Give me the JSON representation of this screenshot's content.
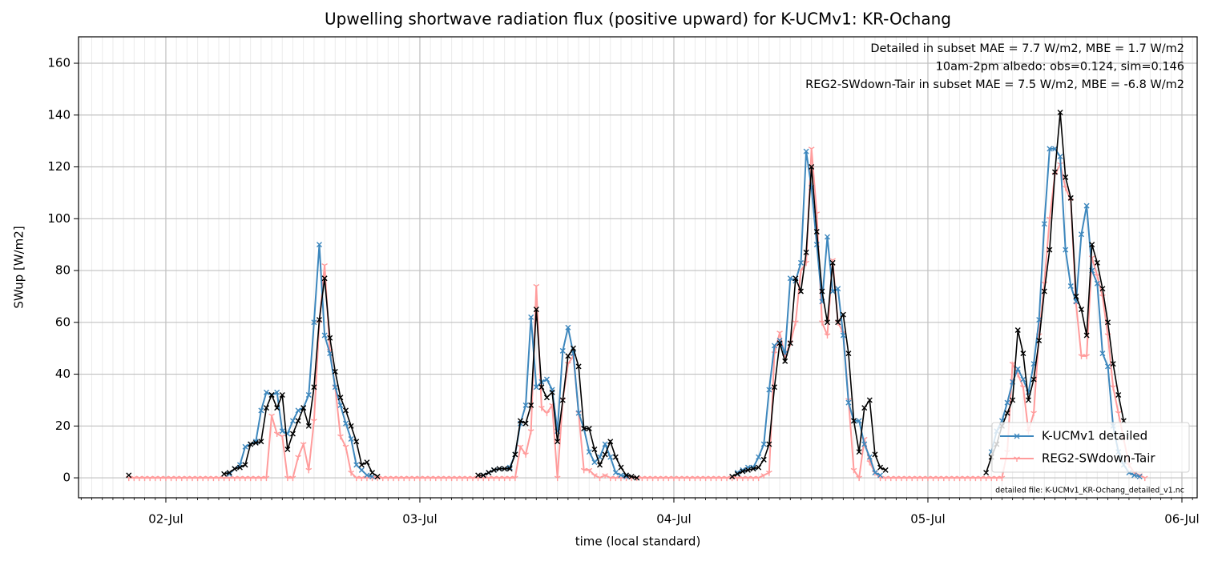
{
  "chart_data": {
    "type": "line",
    "title": "Upwelling shortwave radiation flux (positive upward) for K-UCMv1: KR-Ochang",
    "xlabel": "time (local standard)",
    "ylabel": "SWup [W/m2]",
    "annotations": [
      {
        "text": "Detailed in subset MAE = 7.7 W/m2, MBE = 1.7 W/m2",
        "color": "#1f77b4"
      },
      {
        "text": "10am-2pm albedo: obs=0.124, sim=0.146",
        "color": "#000000"
      },
      {
        "text": "REG2-SWdown-Tair in subset MAE = 7.5 W/m2, MBE = -6.8 W/m2",
        "color": "#ff0000"
      }
    ],
    "footnote": "detailed file: K-UCMv1_KR-Ochang_detailed_v1.nc",
    "xlim": [
      -8.25,
      97.44
    ],
    "xticks": [
      {
        "value": 0,
        "label": "02-Jul"
      },
      {
        "value": 24,
        "label": "03-Jul"
      },
      {
        "value": 48,
        "label": "04-Jul"
      },
      {
        "value": 72,
        "label": "05-Jul"
      },
      {
        "value": 96,
        "label": "06-Jul"
      }
    ],
    "xminor_interval": 1,
    "ylim": [
      -7.7,
      170.2
    ],
    "yticks": [
      0,
      20,
      40,
      60,
      80,
      100,
      120,
      140,
      160
    ],
    "grid": true,
    "legend": "lower right",
    "x": [
      -3.5,
      -3,
      -2.5,
      -2,
      -1.5,
      -1,
      -0.5,
      0,
      0.5,
      1,
      1.5,
      2,
      2.5,
      3,
      3.5,
      4,
      4.5,
      5,
      5.5,
      6,
      6.5,
      7,
      7.5,
      8,
      8.5,
      9,
      9.5,
      10,
      10.5,
      11,
      11.5,
      12,
      12.5,
      13,
      13.5,
      14,
      14.5,
      15,
      15.5,
      16,
      16.5,
      17,
      17.5,
      18,
      18.5,
      19,
      19.5,
      20,
      20.5,
      21,
      21.5,
      22,
      22.5,
      23,
      23.5,
      24,
      24.5,
      25,
      25.5,
      26,
      26.5,
      27,
      27.5,
      28,
      28.5,
      29,
      29.5,
      30,
      30.5,
      31,
      31.5,
      32,
      32.5,
      33,
      33.5,
      34,
      34.5,
      35,
      35.5,
      36,
      36.5,
      37,
      37.5,
      38,
      38.5,
      39,
      39.5,
      40,
      40.5,
      41,
      41.5,
      42,
      42.5,
      43,
      43.5,
      44,
      44.5,
      45,
      45.5,
      46,
      46.5,
      47,
      47.5,
      48,
      48.5,
      49,
      49.5,
      50,
      50.5,
      51,
      51.5,
      52,
      52.5,
      53,
      53.5,
      54,
      54.5,
      55,
      55.5,
      56,
      56.5,
      57,
      57.5,
      58,
      58.5,
      59,
      59.5,
      60,
      60.5,
      61,
      61.5,
      62,
      62.5,
      63,
      63.5,
      64,
      64.5,
      65,
      65.5,
      66,
      66.5,
      67,
      67.5,
      68,
      68.5,
      69,
      69.5,
      70,
      70.5,
      71,
      71.5,
      72,
      72.5,
      73,
      73.5,
      74,
      74.5,
      75,
      75.5,
      76,
      76.5,
      77,
      77.5,
      78,
      78.5,
      79,
      79.5,
      80,
      80.5,
      81,
      81.5,
      82,
      82.5,
      83,
      83.5,
      84,
      84.5,
      85,
      85.5,
      86,
      86.5,
      87,
      87.5,
      88,
      88.5,
      89,
      89.5,
      90,
      90.5,
      91,
      91.5,
      92,
      92.5
    ],
    "series": [
      {
        "name": "K-UCMv1 detailed",
        "color": "#3d87bd",
        "marker": "x",
        "values": [
          null,
          null,
          null,
          null,
          null,
          null,
          null,
          null,
          null,
          null,
          null,
          null,
          null,
          null,
          null,
          null,
          null,
          null,
          null,
          1.5,
          3.5,
          5,
          12,
          13,
          14,
          26,
          33,
          32,
          33,
          18,
          17,
          22,
          26,
          27,
          32,
          60,
          90,
          55,
          48,
          35,
          28,
          21,
          15,
          5,
          3,
          1,
          0.5,
          null,
          null,
          null,
          null,
          null,
          null,
          null,
          null,
          null,
          null,
          null,
          null,
          null,
          null,
          null,
          null,
          null,
          null,
          null,
          null,
          1,
          2,
          3,
          3.5,
          3.5,
          4,
          9,
          21,
          28,
          62,
          35,
          37,
          38,
          34,
          18,
          49,
          58,
          48,
          25,
          19,
          10,
          6,
          8,
          13,
          8,
          2,
          1,
          0.5,
          null,
          null,
          null,
          null,
          null,
          null,
          null,
          null,
          null,
          null,
          null,
          null,
          null,
          null,
          null,
          null,
          null,
          null,
          null,
          null,
          2,
          3,
          4,
          4,
          8,
          13,
          34,
          51,
          53,
          48,
          77,
          76,
          83,
          126,
          112,
          90,
          68,
          93,
          72,
          73,
          55,
          29,
          22,
          22,
          13,
          8,
          2,
          1,
          null,
          null,
          null,
          null,
          null,
          null,
          null,
          null,
          null,
          null,
          null,
          null,
          null,
          null,
          null,
          null,
          null,
          null,
          null,
          null,
          10,
          18,
          22,
          29,
          37,
          42,
          38,
          33,
          44,
          61,
          98,
          127,
          127,
          124,
          88,
          74,
          68,
          94,
          105,
          80,
          75,
          48,
          43,
          20,
          10,
          5,
          2,
          1,
          0.5,
          null
        ]
      },
      {
        "name": "REG2-SWdown-Tair",
        "color": "#ff9c9c",
        "marker": "tri_down",
        "values": [
          0,
          0,
          0,
          0,
          0,
          0,
          0,
          0,
          0,
          0,
          0,
          0,
          0,
          0,
          0,
          0,
          0,
          0,
          0,
          0,
          0,
          0,
          0,
          0,
          0,
          0,
          0,
          24,
          17,
          16,
          0,
          0,
          8,
          13,
          3,
          22,
          60,
          82,
          49,
          35,
          16,
          12,
          2,
          0,
          0,
          0,
          0,
          0,
          0,
          0,
          0,
          0,
          0,
          0,
          0,
          0,
          0,
          0,
          0,
          0,
          0,
          0,
          0,
          0,
          0,
          0,
          0,
          0,
          0,
          0,
          0,
          0,
          0,
          0,
          12,
          9,
          18,
          74,
          27,
          25,
          28,
          0,
          30,
          44,
          47,
          25,
          3,
          3,
          1,
          0,
          1,
          0,
          0,
          0,
          0,
          0,
          0,
          0,
          0,
          0,
          0,
          0,
          0,
          0,
          0,
          0,
          0,
          0,
          0,
          0,
          0,
          0,
          0,
          0,
          0,
          0,
          0,
          0,
          0,
          0,
          1,
          2,
          48,
          56,
          47,
          52,
          60,
          80,
          83,
          127,
          102,
          60,
          55,
          84,
          60,
          56,
          30,
          3,
          0,
          15,
          6,
          2,
          0,
          0,
          0,
          0,
          0,
          0,
          0,
          0,
          0,
          0,
          0,
          0,
          0,
          0,
          0,
          0,
          0,
          0,
          0,
          0,
          0,
          0,
          0,
          0,
          10,
          44,
          40,
          35,
          18,
          25,
          55,
          75,
          100,
          117,
          121,
          112,
          107,
          67,
          47,
          47,
          85,
          78,
          70,
          55,
          35,
          25,
          15,
          5,
          2,
          1,
          0
        ]
      },
      {
        "color": "#000000",
        "marker": "x",
        "values": [
          1,
          null,
          null,
          null,
          null,
          null,
          null,
          null,
          null,
          null,
          null,
          null,
          null,
          null,
          null,
          null,
          null,
          null,
          1.5,
          2,
          3.5,
          4,
          5,
          13,
          13.5,
          14,
          27,
          32,
          27,
          32,
          11,
          17,
          22,
          27,
          20,
          35,
          61,
          77,
          54,
          41,
          31,
          26,
          20,
          14,
          5,
          6,
          2,
          0.5,
          null,
          null,
          null,
          null,
          null,
          null,
          null,
          null,
          null,
          null,
          null,
          null,
          null,
          null,
          null,
          null,
          null,
          null,
          1,
          1,
          2,
          3,
          3.5,
          3.5,
          3.5,
          9,
          22,
          21,
          28,
          65,
          35,
          31,
          33,
          14,
          30,
          47,
          50,
          43,
          19,
          19,
          11,
          5,
          9,
          14,
          8,
          4,
          1,
          0.5,
          0,
          null,
          null,
          null,
          null,
          null,
          null,
          null,
          null,
          null,
          null,
          null,
          null,
          null,
          null,
          null,
          null,
          null,
          0.5,
          1.5,
          2.5,
          3,
          3.5,
          4,
          7,
          13,
          35,
          52,
          45,
          52,
          77,
          72,
          87,
          120,
          95,
          72,
          60,
          83,
          60,
          63,
          48,
          22,
          10,
          27,
          30,
          9,
          4,
          3,
          null,
          null,
          null,
          null,
          null,
          null,
          null,
          null,
          null,
          null,
          null,
          null,
          null,
          null,
          null,
          null,
          null,
          null,
          2,
          8,
          13,
          20,
          25,
          30,
          57,
          48,
          30,
          38,
          53,
          72,
          88,
          118,
          141,
          116,
          108,
          70,
          65,
          55,
          90,
          83,
          73,
          60,
          44,
          32,
          22,
          null,
          null,
          null,
          null
        ]
      }
    ]
  }
}
